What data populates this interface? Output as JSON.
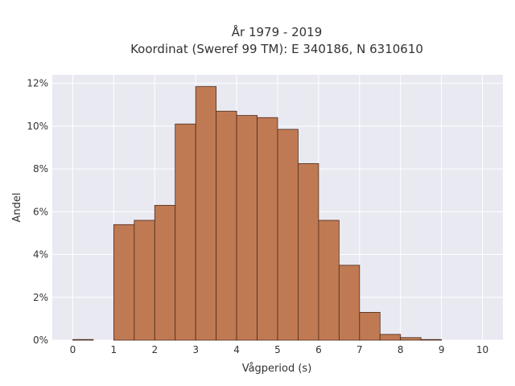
{
  "chart_data": {
    "type": "bar",
    "title_line1": "År 1979 - 2019",
    "title_line2": "Koordinat (Sweref 99 TM): E 340186, N 6310610",
    "xlabel": "Vågperiod (s)",
    "ylabel": "Andel",
    "xlim": [
      -0.5,
      10.5
    ],
    "ylim": [
      0,
      12.4
    ],
    "xticks": [
      "0",
      "1",
      "2",
      "3",
      "4",
      "5",
      "6",
      "7",
      "8",
      "9",
      "10"
    ],
    "yticks": [
      "0%",
      "2%",
      "4%",
      "6%",
      "8%",
      "10%",
      "12%"
    ],
    "bin_width": 0.5,
    "bins": [
      {
        "start": 0.0,
        "value": 0.03
      },
      {
        "start": 0.5,
        "value": 0.0
      },
      {
        "start": 1.0,
        "value": 5.4
      },
      {
        "start": 1.5,
        "value": 5.6
      },
      {
        "start": 2.0,
        "value": 6.3
      },
      {
        "start": 2.5,
        "value": 10.1
      },
      {
        "start": 3.0,
        "value": 11.85
      },
      {
        "start": 3.5,
        "value": 10.7
      },
      {
        "start": 4.0,
        "value": 10.5
      },
      {
        "start": 4.5,
        "value": 10.4
      },
      {
        "start": 5.0,
        "value": 9.85
      },
      {
        "start": 5.5,
        "value": 8.25
      },
      {
        "start": 6.0,
        "value": 5.6
      },
      {
        "start": 6.5,
        "value": 3.5
      },
      {
        "start": 7.0,
        "value": 1.3
      },
      {
        "start": 7.5,
        "value": 0.27
      },
      {
        "start": 8.0,
        "value": 0.12
      },
      {
        "start": 8.5,
        "value": 0.03
      }
    ],
    "grid": true,
    "colors": {
      "bar": "#c07a53",
      "bar_edge": "#4a2a1a",
      "plot_bg": "#e9e9f2",
      "grid": "#ffffff"
    }
  }
}
